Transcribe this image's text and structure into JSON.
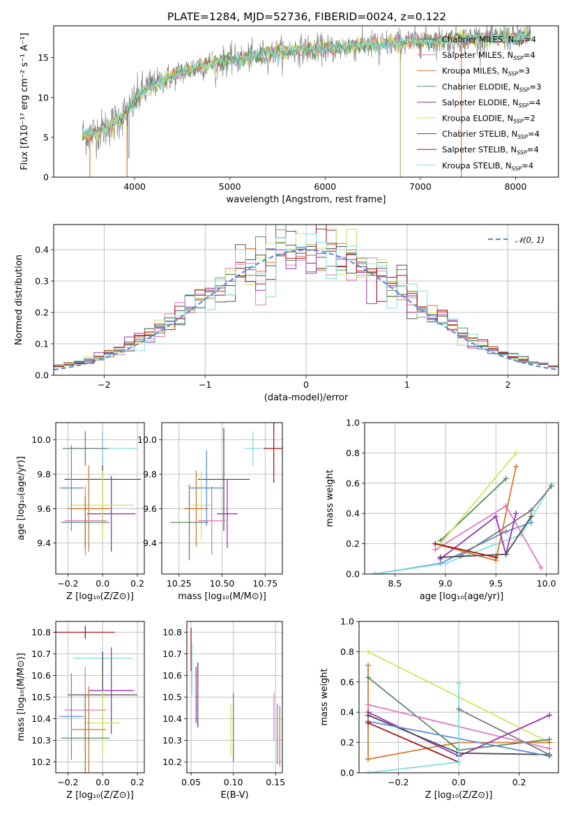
{
  "figure": {
    "title": "PLATE=1284, MJD=52736, FIBERID=0024, z=0.122"
  },
  "models": [
    {
      "name": "Chabrier MILES",
      "nssp": "4",
      "color": "#777777"
    },
    {
      "name": "Salpeter MILES",
      "nssp": "4",
      "color": "#e377c2"
    },
    {
      "name": "Kroupa MILES",
      "nssp": "3",
      "color": "#d9782a"
    },
    {
      "name": "Chabrier ELODIE",
      "nssp": "3",
      "color": "#5b8a62"
    },
    {
      "name": "Salpeter ELODIE",
      "nssp": "4",
      "color": "#9b30b5"
    },
    {
      "name": "Kroupa ELODIE",
      "nssp": "2",
      "color": "#cbe65a"
    },
    {
      "name": "Chabrier STELIB",
      "nssp": "4",
      "color": "#4d4d4d"
    },
    {
      "name": "Salpeter STELIB",
      "nssp": "4",
      "color": "#a51515"
    },
    {
      "name": "Kroupa STELIB",
      "nssp": "4",
      "color": "#7fdfe0"
    }
  ],
  "legend_suffix": "N",
  "legend_sub": "SSP",
  "chart_data": [
    {
      "id": "spectrum",
      "type": "line",
      "xlabel": "wavelength [Angstrom, rest frame]",
      "ylabel": "Flux [fλ10⁻¹⁷ erg cm⁻² s⁻¹ A⁻¹]",
      "xlim": [
        3150,
        8450
      ],
      "ylim": [
        0,
        19
      ],
      "xticks": [
        4000,
        5000,
        6000,
        7000,
        8000
      ],
      "yticks": [
        0,
        5,
        10,
        15
      ],
      "legend_position": "right",
      "data_trend": {
        "x": [
          3450,
          3550,
          3650,
          3750,
          3850,
          3950,
          4050,
          4150,
          4300,
          4500,
          4700,
          4900,
          5100,
          5300,
          5500,
          5800,
          6100,
          6400,
          6700,
          7000,
          7300,
          7600,
          7900,
          8100
        ],
        "y": [
          5.3,
          5.5,
          5.9,
          6.5,
          7.5,
          8.6,
          10.3,
          11.3,
          12.2,
          13.2,
          14.0,
          14.5,
          14.8,
          15.3,
          15.7,
          16.1,
          16.2,
          16.5,
          16.8,
          17.1,
          17.2,
          17.4,
          17.5,
          17.6
        ]
      },
      "spikes": [
        {
          "x": 3530,
          "y": 0
        },
        {
          "x": 3920,
          "y": 0
        },
        {
          "x": 6790,
          "y": 0
        },
        {
          "x": 7430,
          "y": 0
        }
      ]
    },
    {
      "id": "residual_histogram",
      "type": "bar",
      "xlabel": "(data-model)/error",
      "ylabel": "Normed distribution",
      "xlim": [
        -2.5,
        2.5
      ],
      "ylim": [
        0,
        0.48
      ],
      "xticks": [
        -2,
        -1,
        0,
        1,
        2
      ],
      "yticks": [
        0.0,
        0.1,
        0.2,
        0.3,
        0.4
      ],
      "grid": true,
      "legend_position": "top-right",
      "gaussian_label": "𝒩(0, 1)",
      "gaussian_color": "#5b8dd9",
      "bin_width": 0.1,
      "bin_start": -2.5
    },
    {
      "id": "age_vs_z",
      "type": "scatter",
      "xlabel": "Z [log₁₀(Z/Z⊙)]",
      "ylabel": "age  [log₁₀(age/yr)]",
      "xlim": [
        -0.27,
        0.24
      ],
      "ylim": [
        9.22,
        10.1
      ],
      "xticks": [
        -0.2,
        0.0,
        0.2
      ],
      "yticks": [
        9.4,
        9.6,
        9.8,
        10.0
      ],
      "grid": true,
      "points": [
        {
          "model": 6,
          "x": 0.0,
          "y": 9.77,
          "xerr": 0.22,
          "yerr": 0.28
        },
        {
          "model": 8,
          "x": 0.0,
          "y": 9.95,
          "xerr": 0.2,
          "yerr": 0.1
        },
        {
          "model": 0,
          "x": -0.1,
          "y": 9.95,
          "xerr": 0.13,
          "yerr": 0.1
        },
        {
          "model": 4,
          "x": 0.05,
          "y": 9.57,
          "xerr": 0.14,
          "yerr": 0.22
        },
        {
          "model": 5,
          "x": 0.0,
          "y": 9.62,
          "xerr": 0.18,
          "yerr": 0.2
        },
        {
          "model": 2,
          "x": -0.08,
          "y": 9.6,
          "xerr": 0.12,
          "yerr": 0.25
        },
        {
          "model": 1,
          "x": -0.1,
          "y": 9.53,
          "xerr": 0.12,
          "yerr": 0.2
        },
        {
          "model": 3,
          "x": -0.1,
          "y": 9.52,
          "xerr": 0.14,
          "yerr": 0.15
        },
        {
          "model": 9,
          "x": -0.18,
          "y": 9.72,
          "xerr": 0.07,
          "yerr": 0.25
        }
      ]
    },
    {
      "id": "age_vs_mass",
      "type": "scatter",
      "xlabel": "mass [log₁₀(M/M⊙)]",
      "ylabel": "",
      "xlim": [
        10.15,
        10.85
      ],
      "ylim": [
        9.22,
        10.1
      ],
      "xticks": [
        10.25,
        10.5,
        10.75
      ],
      "yticks": [
        9.4,
        9.6,
        9.8,
        10.0
      ],
      "grid": true,
      "points": [
        {
          "model": 6,
          "x": 10.51,
          "y": 9.77,
          "xerr": 0.15,
          "yerr": 0.3
        },
        {
          "model": 7,
          "x": 10.8,
          "y": 9.95,
          "xerr": 0.06,
          "yerr": 0.2
        },
        {
          "model": 8,
          "x": 10.68,
          "y": 9.95,
          "xerr": 0.05,
          "yerr": 0.1
        },
        {
          "model": 4,
          "x": 10.53,
          "y": 9.57,
          "xerr": 0.06,
          "yerr": 0.2
        },
        {
          "model": 5,
          "x": 10.38,
          "y": 9.62,
          "xerr": 0.06,
          "yerr": 0.2
        },
        {
          "model": 2,
          "x": 10.35,
          "y": 9.6,
          "xerr": 0.07,
          "yerr": 0.22
        },
        {
          "model": 1,
          "x": 10.44,
          "y": 9.53,
          "xerr": 0.08,
          "yerr": 0.2
        },
        {
          "model": 3,
          "x": 10.31,
          "y": 9.52,
          "xerr": 0.11,
          "yerr": 0.22
        },
        {
          "model": 9,
          "x": 10.41,
          "y": 9.72,
          "xerr": 0.1,
          "yerr": 0.22
        }
      ]
    },
    {
      "id": "mass_weight_vs_age",
      "type": "line",
      "xlabel": "age  [log₁₀(age/yr)]",
      "ylabel": "mass weight",
      "xlim": [
        8.2,
        10.12
      ],
      "ylim": [
        0,
        1.0
      ],
      "xticks": [
        8.5,
        9.0,
        9.5,
        10.0
      ],
      "yticks": [
        0.0,
        0.2,
        0.4,
        0.6,
        0.8,
        1.0
      ],
      "grid": true,
      "series": [
        {
          "model": 9,
          "x": [
            8.3,
            8.95,
            9.6,
            9.85
          ],
          "y": [
            0.0,
            0.07,
            0.28,
            0.34
          ]
        },
        {
          "model": 8,
          "x": [
            8.3,
            9.0,
            9.75,
            10.05
          ],
          "y": [
            0.0,
            0.07,
            0.26,
            0.59
          ]
        },
        {
          "model": 0,
          "x": [
            9.15,
            9.85,
            10.05
          ],
          "y": [
            0.12,
            0.42,
            0.58
          ]
        },
        {
          "model": 1,
          "x": [
            8.9,
            9.6,
            9.95
          ],
          "y": [
            0.16,
            0.45,
            0.04
          ]
        },
        {
          "model": 2,
          "x": [
            8.9,
            9.5,
            9.7
          ],
          "y": [
            0.2,
            0.09,
            0.71
          ]
        },
        {
          "model": 3,
          "x": [
            8.95,
            9.6
          ],
          "y": [
            0.22,
            0.63
          ]
        },
        {
          "model": 4,
          "x": [
            8.95,
            9.5,
            9.6,
            9.7
          ],
          "y": [
            0.1,
            0.38,
            0.13,
            0.4
          ]
        },
        {
          "model": 5,
          "x": [
            8.95,
            9.7
          ],
          "y": [
            0.2,
            0.8
          ]
        },
        {
          "model": 6,
          "x": [
            8.95,
            9.6,
            9.85
          ],
          "y": [
            0.11,
            0.13,
            0.38
          ]
        },
        {
          "model": 7,
          "x": [
            8.9,
            9.5
          ],
          "y": [
            0.2,
            0.11
          ]
        }
      ]
    },
    {
      "id": "mass_vs_z",
      "type": "scatter",
      "xlabel": "Z [log₁₀(Z/Z⊙)]",
      "ylabel": "mass [log₁₀(M/M⊙)]",
      "xlim": [
        -0.27,
        0.24
      ],
      "ylim": [
        10.15,
        10.85
      ],
      "xticks": [
        -0.2,
        0.0,
        0.2
      ],
      "yticks": [
        10.2,
        10.3,
        10.4,
        10.5,
        10.6,
        10.7,
        10.8
      ],
      "grid": true,
      "points": [
        {
          "model": 7,
          "x": -0.1,
          "y": 10.8,
          "xerr": 0.17,
          "yerr": 0.03
        },
        {
          "model": 8,
          "x": 0.0,
          "y": 10.68,
          "xerr": 0.17,
          "yerr": 0.05
        },
        {
          "model": 6,
          "x": 0.0,
          "y": 10.51,
          "xerr": 0.2,
          "yerr": 0.2
        },
        {
          "model": 4,
          "x": 0.05,
          "y": 10.53,
          "xerr": 0.13,
          "yerr": 0.2
        },
        {
          "model": 1,
          "x": -0.1,
          "y": 10.44,
          "xerr": 0.12,
          "yerr": 0.2
        },
        {
          "model": 9,
          "x": -0.18,
          "y": 10.41,
          "xerr": 0.07,
          "yerr": 0.2
        },
        {
          "model": 5,
          "x": 0.0,
          "y": 10.38,
          "xerr": 0.1,
          "yerr": 0.15
        },
        {
          "model": 2,
          "x": -0.08,
          "y": 10.35,
          "xerr": 0.1,
          "yerr": 0.2
        },
        {
          "model": 3,
          "x": -0.1,
          "y": 10.31,
          "xerr": 0.14,
          "yerr": 0.2
        }
      ]
    },
    {
      "id": "mass_vs_ebv",
      "type": "scatter",
      "xlabel": "E(B-V)",
      "ylabel": "",
      "xlim": [
        0.045,
        0.158
      ],
      "ylim": [
        10.15,
        10.85
      ],
      "xticks": [
        0.05,
        0.1,
        0.15
      ],
      "yticks": [
        10.2,
        10.3,
        10.4,
        10.5,
        10.6,
        10.7,
        10.8
      ],
      "grid": true,
      "points": [
        {
          "model": 7,
          "x": 0.05,
          "y": 10.72,
          "xerr": 0,
          "yerr": 0.1
        },
        {
          "model": 8,
          "x": 0.051,
          "y": 10.63,
          "xerr": 0,
          "yerr": 0.12
        },
        {
          "model": 6,
          "x": 0.058,
          "y": 10.51,
          "xerr": 0,
          "yerr": 0.15
        },
        {
          "model": 4,
          "x": 0.056,
          "y": 10.51,
          "xerr": 0,
          "yerr": 0.13
        },
        {
          "model": 5,
          "x": 0.097,
          "y": 10.35,
          "xerr": 0,
          "yerr": 0.12
        },
        {
          "model": 3,
          "x": 0.1,
          "y": 10.36,
          "xerr": 0,
          "yerr": 0.16
        },
        {
          "model": 1,
          "x": 0.148,
          "y": 10.41,
          "xerr": 0,
          "yerr": 0.11
        },
        {
          "model": 9,
          "x": 0.152,
          "y": 10.33,
          "xerr": 0,
          "yerr": 0.14
        },
        {
          "model": 2,
          "x": 0.155,
          "y": 10.32,
          "xerr": 0,
          "yerr": 0.14
        }
      ]
    },
    {
      "id": "mass_weight_vs_z",
      "type": "line",
      "xlabel": "Z [log₁₀(Z/Z⊙)]",
      "ylabel": "mass weight",
      "xlim": [
        -0.33,
        0.33
      ],
      "ylim": [
        0,
        1.0
      ],
      "xticks": [
        -0.2,
        0.0,
        0.2
      ],
      "yticks": [
        0.0,
        0.2,
        0.4,
        0.6,
        0.8,
        1.0
      ],
      "grid": true,
      "series": [
        {
          "model": 5,
          "x": [
            -0.3,
            0.3
          ],
          "y": [
            0.8,
            0.2
          ]
        },
        {
          "model": 2,
          "x": [
            -0.3,
            -0.3,
            0.0,
            0.3
          ],
          "y": [
            0.71,
            0.09,
            0.2,
            0.2
          ]
        },
        {
          "model": 3,
          "x": [
            -0.3,
            0.0,
            0.3
          ],
          "y": [
            0.63,
            0.15,
            0.22
          ]
        },
        {
          "model": 1,
          "x": [
            -0.3,
            0.3
          ],
          "y": [
            0.45,
            0.16
          ]
        },
        {
          "model": 4,
          "x": [
            -0.3,
            0.0,
            0.3
          ],
          "y": [
            0.4,
            0.11,
            0.38
          ]
        },
        {
          "model": 6,
          "x": [
            -0.3,
            0.0,
            0.3
          ],
          "y": [
            0.38,
            0.13,
            0.12
          ]
        },
        {
          "model": 9,
          "x": [
            -0.3,
            0.3
          ],
          "y": [
            0.34,
            0.11
          ]
        },
        {
          "model": 7,
          "x": [
            -0.3,
            0.0
          ],
          "y": [
            0.33,
            0.07
          ]
        },
        {
          "model": 8,
          "x": [
            -0.3,
            0.0,
            0.0
          ],
          "y": [
            0.0,
            0.07,
            0.59
          ]
        },
        {
          "model": 0,
          "x": [
            0.0,
            0.3
          ],
          "y": [
            0.42,
            0.12
          ]
        }
      ]
    }
  ]
}
